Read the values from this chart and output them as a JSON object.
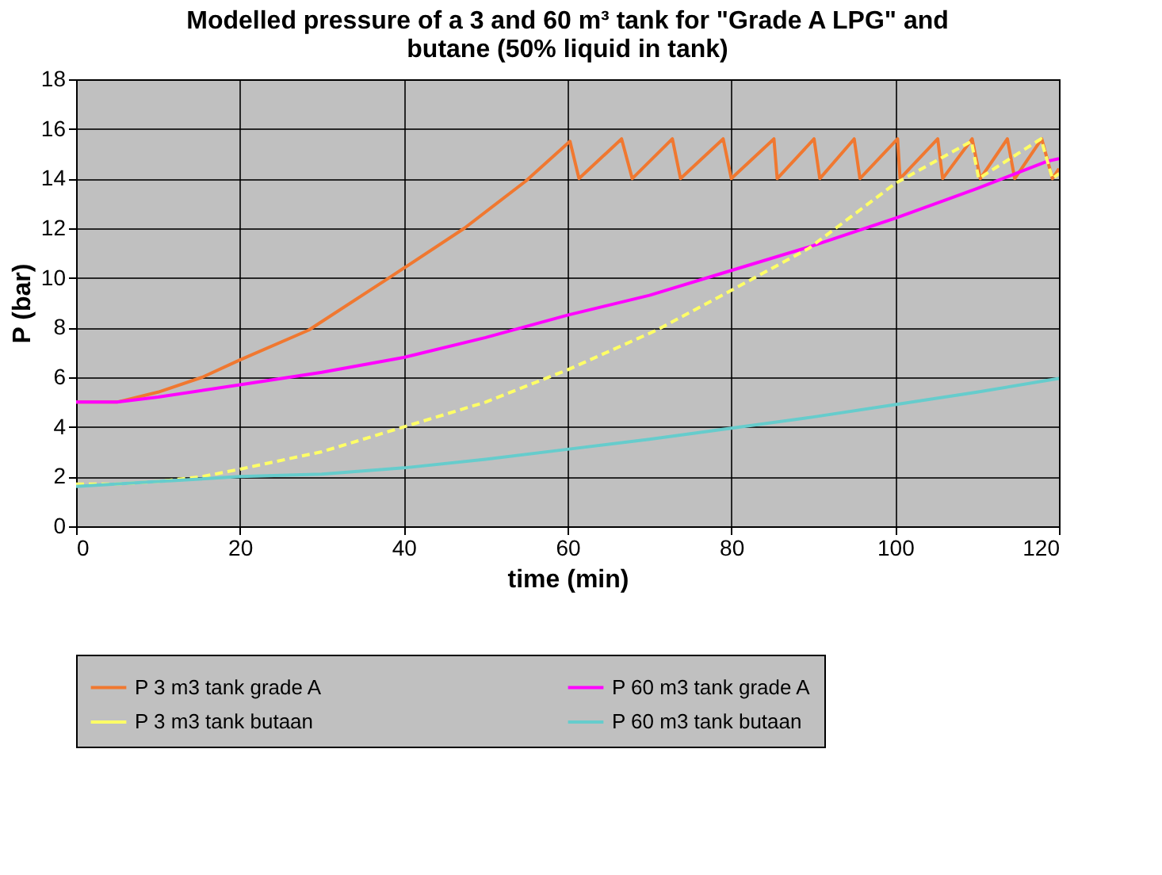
{
  "chart_data": {
    "type": "line",
    "title": "Modelled pressure of a 3 and 60 m³ tank for \"Grade A LPG\" and butane (50% liquid in tank)",
    "xlabel": "time (min)",
    "ylabel": "P (bar)",
    "xlim": [
      0,
      120
    ],
    "xticks": [
      0,
      20,
      40,
      60,
      80,
      100,
      120
    ],
    "ylim": [
      0,
      18
    ],
    "yticks": [
      0,
      2,
      4,
      6,
      8,
      10,
      12,
      14,
      16,
      18
    ],
    "grid": true,
    "legend": "bottom",
    "marker": "none",
    "series": [
      {
        "name": "P 3 m3 tank grade A",
        "color": "#f07830",
        "line_style": "solid",
        "x": [
          0,
          5,
          10,
          15.4,
          20,
          28.4,
          38.2,
          47.4,
          54.9,
          60.3,
          61.4,
          66.6,
          67.9,
          72.8,
          73.8,
          79,
          80,
          85.2,
          85.6,
          90.1,
          90.8,
          95,
          95.7,
          100.3,
          100.6,
          105.2,
          105.8,
          109.4,
          110.4,
          113.7,
          114.6,
          117.9,
          119.2,
          120
        ],
        "values": [
          5,
          5,
          5.4,
          6,
          6.7,
          7.9,
          10,
          12,
          13.9,
          15.5,
          14,
          15.6,
          14,
          15.6,
          14,
          15.6,
          14,
          15.6,
          14,
          15.6,
          14,
          15.6,
          14,
          15.6,
          14,
          15.6,
          14,
          15.6,
          14,
          15.6,
          14,
          15.6,
          14,
          14.4
        ]
      },
      {
        "name": "P 60 m3 tank grade A",
        "color": "#ff00ff",
        "line_style": "solid",
        "x": [
          0,
          5,
          10,
          20,
          30,
          40,
          50,
          60,
          70,
          80,
          90,
          100,
          110,
          118.6,
          120
        ],
        "values": [
          5,
          5,
          5.2,
          5.7,
          6.2,
          6.8,
          7.6,
          8.5,
          9.3,
          10.3,
          11.3,
          12.4,
          13.6,
          14.7,
          14.8
        ]
      },
      {
        "name": "P 3 m3 tank butaan",
        "color": "#ffff66",
        "line_style": "dashed",
        "x": [
          0,
          5,
          10,
          15.4,
          20,
          30,
          40,
          50,
          60,
          70.9,
          80,
          89.5,
          100,
          109.3,
          110.2,
          117.8,
          119.2,
          120
        ],
        "values": [
          1.7,
          1.7,
          1.8,
          2,
          2.3,
          3,
          4,
          5,
          6.3,
          7.9,
          9.5,
          11.2,
          13.8,
          15.5,
          14,
          15.6,
          14,
          14.2
        ]
      },
      {
        "name": "P 60 m3 tank butaan",
        "color": "#66cccc",
        "line_style": "solid",
        "x": [
          0,
          10,
          20,
          30,
          40,
          50,
          60,
          70,
          80,
          90,
          100,
          110,
          120
        ],
        "values": [
          1.6,
          1.8,
          2,
          2.1,
          2.35,
          2.7,
          3.1,
          3.5,
          3.95,
          4.4,
          4.9,
          5.4,
          5.95
        ]
      }
    ]
  }
}
